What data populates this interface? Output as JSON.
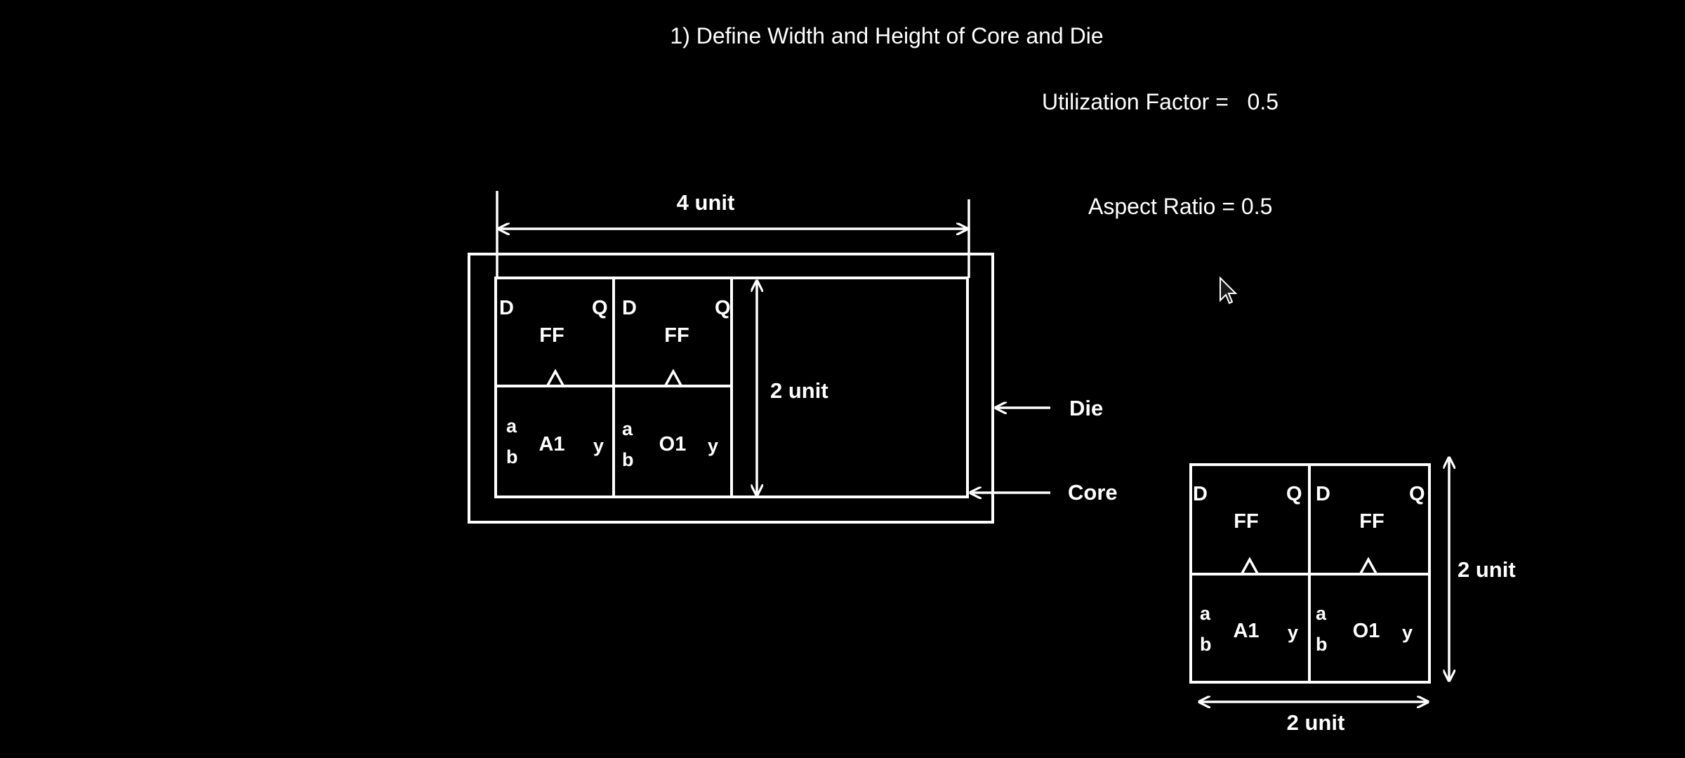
{
  "title": "1) Define Width and Height of Core and Die",
  "params": {
    "utilization": "Utilization Factor =   0.5",
    "aspect_ratio": "Aspect Ratio = 0.5"
  },
  "floorplan": {
    "width_label": "4 unit",
    "height_label": "2 unit",
    "die_label": "Die",
    "core_label": "Core"
  },
  "cells": {
    "flipflop": {
      "name": "FF",
      "d": "D",
      "q": "Q",
      "clk": "^"
    },
    "and_gate": {
      "name": "A1",
      "a": "a",
      "b": "b",
      "y": "y"
    },
    "or_gate": {
      "name": "O1",
      "a": "a",
      "b": "b",
      "y": "y"
    }
  },
  "netlist_block": {
    "height_label": "2 unit",
    "width_label": "2 unit"
  },
  "colors": {
    "background": "#000000",
    "foreground": "#ffffff"
  }
}
